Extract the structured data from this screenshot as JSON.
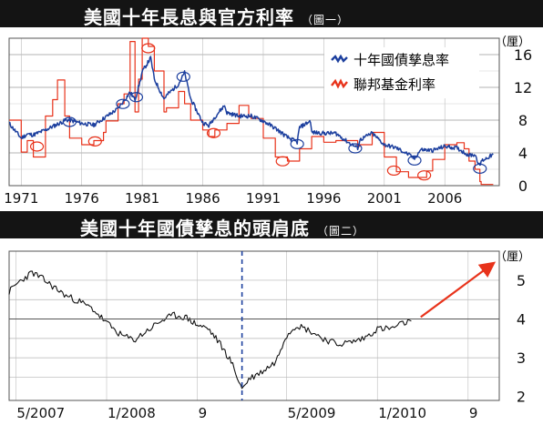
{
  "chart_data": [
    {
      "type": "line",
      "title": "美國十年長息與官方利率",
      "subtitle": "（圖一）",
      "y_unit": "（厘）",
      "xlim": [
        1970,
        2010.5
      ],
      "ylim": [
        0,
        18
      ],
      "x_tick_labels": [
        "1971",
        "1976",
        "1981",
        "1986",
        "1991",
        "1996",
        "2001",
        "2006"
      ],
      "x_ticks": [
        1971,
        1976,
        1981,
        1986,
        1991,
        1996,
        2001,
        2006
      ],
      "y_ticks": [
        0,
        4,
        8,
        12,
        16
      ],
      "y_tick_labels": [
        "0",
        "4",
        "8",
        "12",
        "16"
      ],
      "grid": true,
      "legend_position": "top-right",
      "series": [
        {
          "name": "十年國債孳息率",
          "color": "#1c3f9e",
          "x": [
            1970,
            1971,
            1971.5,
            1972,
            1973,
            1974,
            1974.7,
            1975,
            1976,
            1977,
            1978,
            1979,
            1979.5,
            1980,
            1980.4,
            1980.8,
            1981,
            1981.7,
            1982,
            1982.8,
            1983,
            1984,
            1984.5,
            1985,
            1986,
            1986.5,
            1987,
            1987.8,
            1988,
            1989,
            1990,
            1991,
            1992,
            1993,
            1993.8,
            1994,
            1994.9,
            1995,
            1996,
            1997,
            1998,
            1998.8,
            1999,
            2000,
            2001,
            2002,
            2003,
            2003.5,
            2004,
            2005,
            2006,
            2007,
            2008,
            2008.5,
            2008.9,
            2009,
            2010
          ],
          "y": [
            7.6,
            5.8,
            6.3,
            6.2,
            6.8,
            7.5,
            8.0,
            8.0,
            7.6,
            7.4,
            8.4,
            9.4,
            10.4,
            11.4,
            10.5,
            12.6,
            13.9,
            15.6,
            13.0,
            10.6,
            11.0,
            12.4,
            13.8,
            10.6,
            7.7,
            7.3,
            8.4,
            9.8,
            8.9,
            8.5,
            8.5,
            7.9,
            7.0,
            5.9,
            5.3,
            7.1,
            7.9,
            6.5,
            6.4,
            6.4,
            5.3,
            4.6,
            5.6,
            6.4,
            5.0,
            4.6,
            3.8,
            3.3,
            4.4,
            4.3,
            4.8,
            4.6,
            3.7,
            3.8,
            2.3,
            3.0,
            3.8
          ]
        },
        {
          "name": "聯邦基金利率",
          "color": "#e8331b",
          "x": [
            1970,
            1971,
            1971.5,
            1972,
            1973,
            1973.6,
            1974,
            1974.6,
            1975,
            1976,
            1977,
            1977.8,
            1978,
            1979,
            1979.5,
            1980,
            1980.4,
            1980.7,
            1981,
            1981.5,
            1982,
            1982.8,
            1983,
            1984,
            1984.5,
            1985,
            1986,
            1986.5,
            1987,
            1988,
            1989,
            1989.8,
            1990,
            1991,
            1992,
            1993,
            1994,
            1995,
            1996,
            1997,
            1998,
            1998.8,
            1999,
            2000,
            2001,
            2002,
            2003,
            2004,
            2004.5,
            2005,
            2006,
            2007,
            2007.6,
            2008,
            2008.5,
            2008.9,
            2009,
            2010
          ],
          "y": [
            8.0,
            4.1,
            5.5,
            3.5,
            8.5,
            10.5,
            12.9,
            8.5,
            5.8,
            5.0,
            5.5,
            6.5,
            7.9,
            10.0,
            11.2,
            17.6,
            9.0,
            13.0,
            19.0,
            17.0,
            14.0,
            9.0,
            9.5,
            11.5,
            10.0,
            8.0,
            6.8,
            6.0,
            6.8,
            7.6,
            9.8,
            8.5,
            8.2,
            5.8,
            3.5,
            3.0,
            4.5,
            6.0,
            5.3,
            5.5,
            5.5,
            4.8,
            5.0,
            6.5,
            3.5,
            1.7,
            1.0,
            1.0,
            1.8,
            3.2,
            5.0,
            5.25,
            4.5,
            3.0,
            2.0,
            0.5,
            0.15,
            0.15
          ]
        }
      ],
      "annotations": {
        "blue_circles_x": [
          1975,
          1979.4,
          1980.5,
          1984.4,
          1993.8,
          1998.6,
          2003.5,
          2008.9
        ],
        "red_circles_x": [
          1972.3,
          1977.1,
          1981.5,
          1986.9,
          1992.6,
          2001.8,
          2004.3
        ]
      }
    },
    {
      "type": "line",
      "title": "美國十年國債孳息的頭肩底",
      "subtitle": "（圖二）",
      "y_unit": "（厘）",
      "xlim": [
        2007.28,
        2010.9
      ],
      "ylim": [
        1.9,
        5.75
      ],
      "x_ticks": [
        2007.33,
        2008.0,
        2008.67,
        2009.33,
        2010.0,
        2010.67
      ],
      "x_tick_labels": [
        "5/2007",
        "1/2008",
        "9",
        "5/2009",
        "1/2010",
        "9"
      ],
      "y_ticks": [
        2,
        3,
        4,
        5
      ],
      "y_tick_labels": [
        "2",
        "3",
        "4",
        "5"
      ],
      "grid": true,
      "series": [
        {
          "name": "",
          "color": "#111111",
          "x": [
            2007.28,
            2007.35,
            2007.45,
            2007.52,
            2007.6,
            2007.7,
            2007.8,
            2007.9,
            2008.0,
            2008.1,
            2008.2,
            2008.3,
            2008.4,
            2008.5,
            2008.58,
            2008.67,
            2008.75,
            2008.83,
            2008.92,
            2009.0,
            2009.05,
            2009.15,
            2009.25,
            2009.32,
            2009.4,
            2009.5,
            2009.6,
            2009.7,
            2009.8,
            2009.9,
            2010.0,
            2010.1,
            2010.2,
            2010.25
          ],
          "y": [
            4.7,
            4.95,
            5.2,
            5.05,
            4.85,
            4.6,
            4.45,
            4.25,
            3.9,
            3.6,
            3.45,
            3.7,
            3.95,
            4.1,
            4.05,
            3.85,
            3.75,
            3.4,
            2.9,
            2.2,
            2.45,
            2.65,
            2.9,
            3.55,
            3.85,
            3.7,
            3.5,
            3.35,
            3.4,
            3.5,
            3.75,
            3.75,
            3.9,
            3.95
          ]
        }
      ],
      "annotations": {
        "neckline_y": 4.0,
        "dashed_vertical_x": 2009.0
      }
    }
  ]
}
